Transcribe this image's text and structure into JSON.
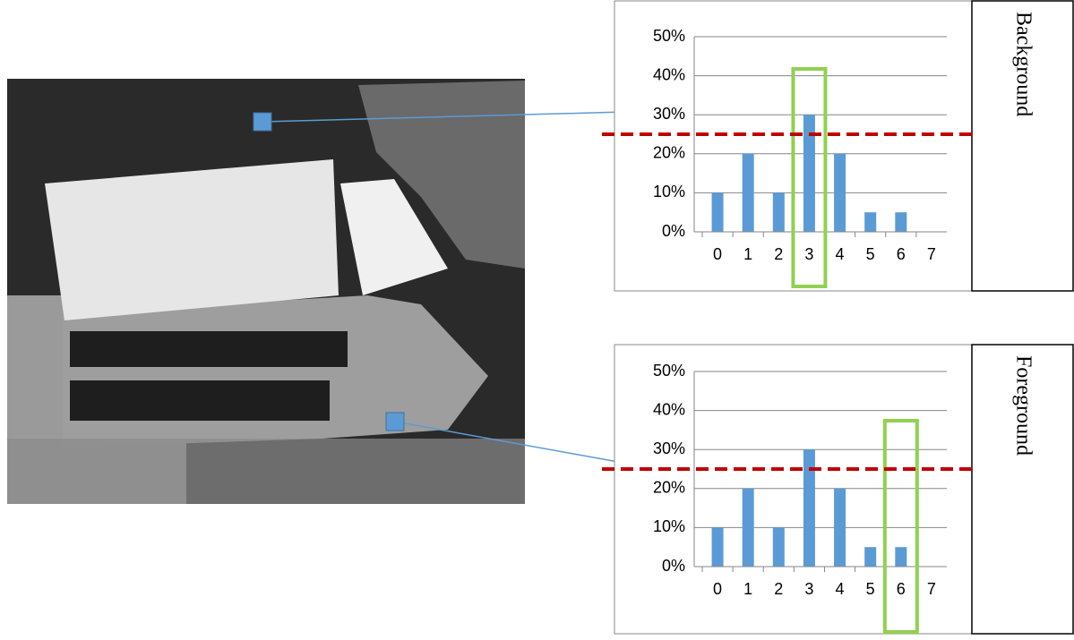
{
  "chart_data": [
    {
      "type": "bar",
      "label": "Background",
      "categories": [
        "0",
        "1",
        "2",
        "3",
        "4",
        "5",
        "6",
        "7"
      ],
      "values": [
        10,
        20,
        10,
        30,
        20,
        5,
        5,
        0
      ],
      "color": "#5b9bd5",
      "ylim": [
        0,
        50
      ],
      "yticks": [
        {
          "value": 0,
          "label": "0%"
        },
        {
          "value": 10,
          "label": "10%"
        },
        {
          "value": 20,
          "label": "20%"
        },
        {
          "value": 30,
          "label": "30%"
        },
        {
          "value": 40,
          "label": "40%"
        },
        {
          "value": 50,
          "label": "50%"
        }
      ],
      "grid": true,
      "threshold": 25,
      "threshold_color": "#c00000",
      "highlight_category": 3,
      "highlight_color": "#92d050"
    },
    {
      "type": "bar",
      "label": "Foreground",
      "categories": [
        "0",
        "1",
        "2",
        "3",
        "4",
        "5",
        "6",
        "7"
      ],
      "values": [
        10,
        20,
        10,
        30,
        20,
        5,
        5,
        0
      ],
      "color": "#5b9bd5",
      "ylim": [
        0,
        50
      ],
      "yticks": [
        {
          "value": 0,
          "label": "0%"
        },
        {
          "value": 10,
          "label": "10%"
        },
        {
          "value": 20,
          "label": "20%"
        },
        {
          "value": 30,
          "label": "30%"
        },
        {
          "value": 40,
          "label": "40%"
        },
        {
          "value": 50,
          "label": "50%"
        }
      ],
      "grid": true,
      "threshold": 25,
      "threshold_color": "#c00000",
      "highlight_category": 6,
      "highlight_color": "#92d050"
    }
  ]
}
